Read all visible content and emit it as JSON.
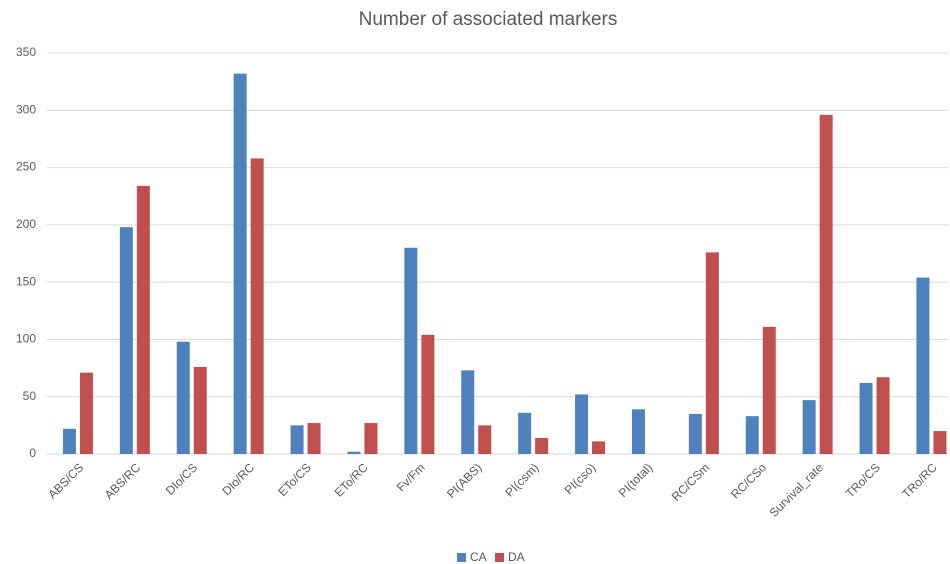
{
  "chart_data": {
    "type": "bar",
    "title": "Number of associated markers",
    "categories": [
      "ABS/CS",
      "ABS/RC",
      "DIo/CS",
      "DIo/RC",
      "ETo/CS",
      "ETo/RC",
      "Fv/Fm",
      "PI(ABS)",
      "PI(csm)",
      "PI(cso)",
      "PI(total)",
      "RC/CSm",
      "RC/CSo",
      "Survival_rate",
      "TRo/CS",
      "TRo/RC"
    ],
    "series": [
      {
        "name": "CA",
        "color": "#4f81bd",
        "values": [
          22,
          198,
          98,
          332,
          25,
          2,
          180,
          73,
          36,
          52,
          39,
          35,
          33,
          47,
          62,
          154
        ]
      },
      {
        "name": "DA",
        "color": "#c0504d",
        "values": [
          71,
          234,
          76,
          258,
          27,
          27,
          104,
          25,
          14,
          11,
          0,
          176,
          111,
          296,
          67,
          20
        ]
      }
    ],
    "ylim": [
      0,
      350
    ],
    "yticks": [
      0,
      50,
      100,
      150,
      200,
      250,
      300,
      350
    ],
    "grid": true,
    "legend": "bottom"
  }
}
